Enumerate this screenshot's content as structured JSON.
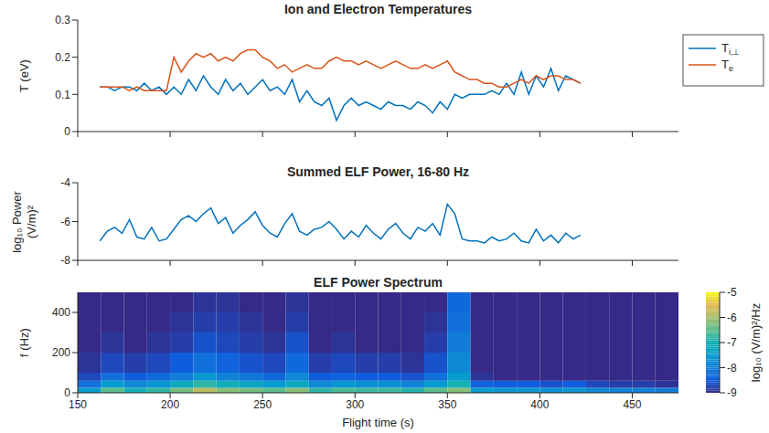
{
  "chart_data": [
    {
      "type": "line",
      "title": "Ion and Electron Temperatures",
      "ylabel": "T (eV)",
      "x": [
        162,
        166,
        170,
        174,
        178,
        182,
        186,
        190,
        194,
        198,
        202,
        206,
        210,
        214,
        218,
        222,
        226,
        230,
        234,
        238,
        242,
        246,
        250,
        254,
        258,
        262,
        266,
        270,
        274,
        278,
        282,
        286,
        290,
        294,
        298,
        302,
        306,
        310,
        314,
        318,
        322,
        326,
        330,
        334,
        338,
        342,
        346,
        350,
        354,
        358,
        362,
        366,
        370,
        374,
        378,
        382,
        386,
        390,
        394,
        398,
        402,
        406,
        410,
        414,
        418,
        422
      ],
      "series": [
        {
          "name": "Ti,⊥",
          "color": "#0072bd",
          "values": [
            0.12,
            0.12,
            0.11,
            0.12,
            0.12,
            0.11,
            0.13,
            0.11,
            0.12,
            0.1,
            0.12,
            0.1,
            0.14,
            0.11,
            0.15,
            0.12,
            0.1,
            0.14,
            0.11,
            0.13,
            0.1,
            0.12,
            0.14,
            0.11,
            0.12,
            0.1,
            0.14,
            0.08,
            0.11,
            0.08,
            0.07,
            0.09,
            0.03,
            0.07,
            0.09,
            0.07,
            0.08,
            0.07,
            0.06,
            0.08,
            0.07,
            0.07,
            0.06,
            0.08,
            0.07,
            0.05,
            0.08,
            0.06,
            0.1,
            0.09,
            0.1,
            0.1,
            0.1,
            0.11,
            0.1,
            0.13,
            0.1,
            0.16,
            0.1,
            0.15,
            0.12,
            0.17,
            0.11,
            0.15,
            0.14,
            0.13
          ]
        },
        {
          "name": "Te",
          "color": "#d95319",
          "values": [
            0.12,
            0.12,
            0.12,
            0.12,
            0.11,
            0.12,
            0.11,
            0.11,
            0.11,
            0.11,
            0.2,
            0.16,
            0.19,
            0.21,
            0.2,
            0.21,
            0.19,
            0.2,
            0.19,
            0.21,
            0.22,
            0.22,
            0.2,
            0.19,
            0.17,
            0.18,
            0.16,
            0.17,
            0.18,
            0.17,
            0.17,
            0.19,
            0.2,
            0.19,
            0.19,
            0.18,
            0.19,
            0.18,
            0.17,
            0.18,
            0.19,
            0.18,
            0.17,
            0.17,
            0.18,
            0.17,
            0.18,
            0.19,
            0.16,
            0.15,
            0.14,
            0.14,
            0.13,
            0.13,
            0.12,
            0.12,
            0.13,
            0.14,
            0.13,
            0.15,
            0.14,
            0.15,
            0.15,
            0.14,
            0.14,
            0.13
          ]
        }
      ],
      "xlim": [
        150,
        475
      ],
      "xticks": [
        150,
        200,
        250,
        300,
        350,
        400,
        450
      ],
      "ylim": [
        0,
        0.3
      ],
      "yticks": [
        0,
        0.1,
        0.2,
        0.3
      ],
      "legend": "right",
      "tick_labels": "y"
    },
    {
      "type": "line",
      "title": "Summed ELF Power, 16-80 Hz",
      "ylabel": [
        "log₁₀ Power",
        "(V/m)²"
      ],
      "color": "#0072bd",
      "x": [
        162,
        166,
        170,
        174,
        178,
        182,
        186,
        190,
        194,
        198,
        202,
        206,
        210,
        214,
        218,
        222,
        226,
        230,
        234,
        238,
        242,
        246,
        250,
        254,
        258,
        262,
        266,
        270,
        274,
        278,
        282,
        286,
        290,
        294,
        298,
        302,
        306,
        310,
        314,
        318,
        322,
        326,
        330,
        334,
        338,
        342,
        346,
        350,
        354,
        358,
        362,
        366,
        370,
        374,
        378,
        382,
        386,
        390,
        394,
        398,
        402,
        406,
        410,
        414,
        418,
        422
      ],
      "values": [
        -7.0,
        -6.5,
        -6.3,
        -6.6,
        -5.9,
        -6.8,
        -6.9,
        -6.3,
        -7.0,
        -6.9,
        -6.4,
        -5.9,
        -5.7,
        -6.0,
        -5.6,
        -5.3,
        -6.1,
        -5.8,
        -6.6,
        -6.2,
        -5.9,
        -5.5,
        -6.2,
        -6.6,
        -6.8,
        -6.1,
        -5.6,
        -6.5,
        -6.7,
        -6.4,
        -6.3,
        -6.0,
        -6.4,
        -6.9,
        -6.5,
        -6.8,
        -6.2,
        -6.6,
        -6.9,
        -6.4,
        -6.1,
        -6.6,
        -6.9,
        -6.3,
        -6.5,
        -6.1,
        -6.7,
        -5.1,
        -5.6,
        -6.9,
        -7.0,
        -7.0,
        -7.1,
        -6.8,
        -7.0,
        -6.9,
        -6.6,
        -7.0,
        -7.1,
        -6.4,
        -7.0,
        -6.7,
        -7.1,
        -6.6,
        -6.9,
        -6.7
      ],
      "xlim": [
        150,
        475
      ],
      "xticks": [
        150,
        200,
        250,
        300,
        350,
        400,
        450
      ],
      "ylim": [
        -8,
        -4
      ],
      "yticks": [
        -8,
        -6,
        -4
      ],
      "tick_labels": "y"
    },
    {
      "type": "heatmap",
      "title": "ELF Power Spectrum",
      "xlabel": "Flight time (s)",
      "ylabel": "f (Hz)",
      "x_edges": [
        150,
        162.5,
        175,
        187.5,
        200,
        212.5,
        225,
        237.5,
        250,
        262.5,
        275,
        287.5,
        300,
        312.5,
        325,
        337.5,
        350,
        362.5,
        375,
        387.5,
        400,
        412.5,
        425,
        437.5,
        450,
        462.5,
        475
      ],
      "y_edges": [
        0,
        25,
        60,
        100,
        200,
        300,
        400,
        500
      ],
      "cells": [
        [
          -7.5,
          -6.5,
          -7,
          -6.8,
          -6.3,
          -5.8,
          -6.2,
          -6.3,
          -6.5,
          -6.2,
          -6.8,
          -6.6,
          -6.7,
          -6.7,
          -6.9,
          -6.5,
          -6.2,
          -7.5,
          -7.6,
          -7.6,
          -7.7,
          -7.6,
          -7.8,
          -7.9,
          -7.9,
          -8
        ],
        [
          -8.2,
          -7.5,
          -7.8,
          -7.6,
          -7.2,
          -6.8,
          -7.1,
          -7.3,
          -7.5,
          -7.2,
          -7.8,
          -7.6,
          -7.7,
          -7.7,
          -7.9,
          -7.5,
          -7.0,
          -8.4,
          -8.5,
          -8.5,
          -8.6,
          -8.5,
          -8.7,
          -8.8,
          -8.8,
          -8.9
        ],
        [
          -8.7,
          -8.2,
          -8.5,
          -8.3,
          -8.0,
          -7.6,
          -7.9,
          -8.1,
          -8.3,
          -7.8,
          -8.5,
          -8.4,
          -8.5,
          -8.5,
          -8.6,
          -8.2,
          -7.5,
          -8.9,
          -9,
          -9,
          -9,
          -9,
          -9,
          -9,
          -9,
          -9
        ],
        [
          -8.9,
          -8.7,
          -8.8,
          -8.7,
          -8.5,
          -8.2,
          -8.4,
          -8.6,
          -8.7,
          -8.3,
          -8.8,
          -8.7,
          -8.8,
          -8.8,
          -8.9,
          -8.6,
          -7.8,
          -9,
          -9,
          -9,
          -9,
          -9,
          -9,
          -9,
          -9,
          -9
        ],
        [
          -9,
          -8.9,
          -9,
          -8.9,
          -8.8,
          -8.6,
          -8.7,
          -8.8,
          -8.9,
          -8.6,
          -9,
          -8.9,
          -9,
          -9,
          -9,
          -8.8,
          -8.0,
          -9,
          -9,
          -9,
          -9,
          -9,
          -9,
          -9,
          -9,
          -9
        ],
        [
          -9,
          -9,
          -9,
          -9,
          -8.9,
          -8.8,
          -8.8,
          -8.9,
          -9,
          -8.8,
          -9,
          -9,
          -9,
          -9,
          -9,
          -8.9,
          -8.2,
          -9,
          -9,
          -9,
          -9,
          -9,
          -9,
          -9,
          -9,
          -9
        ],
        [
          -9,
          -9,
          -9,
          -9,
          -9,
          -8.9,
          -8.9,
          -9,
          -9,
          -8.9,
          -9,
          -9,
          -9,
          -9,
          -9,
          -9,
          -8.3,
          -9,
          -9,
          -9,
          -9,
          -9,
          -9,
          -9,
          -9,
          -9
        ]
      ],
      "xlim": [
        150,
        475
      ],
      "xticks": [
        150,
        200,
        250,
        300,
        350,
        400,
        450
      ],
      "ylim": [
        0,
        500
      ],
      "yticks": [
        0,
        200,
        400
      ],
      "colorbar": {
        "label": "log₁₀ (V/m)²/Hz",
        "range": [
          -9,
          -5
        ],
        "ticks": [
          -9,
          -8,
          -7,
          -6,
          -5
        ]
      }
    }
  ]
}
